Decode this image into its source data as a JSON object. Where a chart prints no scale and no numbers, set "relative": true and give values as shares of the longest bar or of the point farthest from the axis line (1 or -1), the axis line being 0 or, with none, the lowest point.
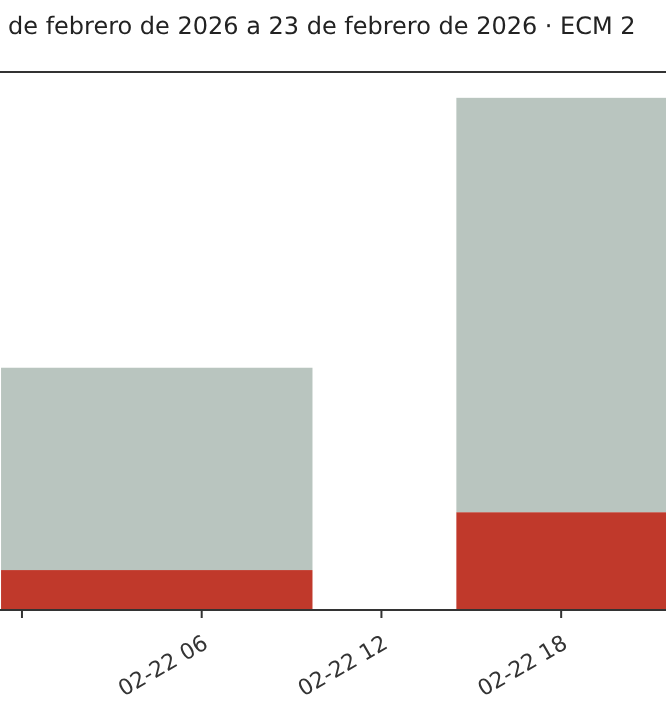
{
  "chart_data": {
    "type": "bar",
    "title": "de febrero de 2026 a 23 de febrero de 2026 · ECM 2",
    "relative": true,
    "stacked": true,
    "x": [
      "2026-02-22T04:30",
      "2026-02-22T19:42"
    ],
    "xlim": [
      "2026-02-21T23:16",
      "2026-02-22T21:30"
    ],
    "xticks": [
      {
        "value": "2026-02-22T00:00",
        "label": null
      },
      {
        "value": "2026-02-22T06:00",
        "label": "02-22 06"
      },
      {
        "value": "2026-02-22T12:00",
        "label": "02-22 12"
      },
      {
        "value": "2026-02-22T18:00",
        "label": "02-22 18"
      }
    ],
    "series": [
      {
        "color": "#c0392b",
        "values": [
          0.078,
          0.191
        ]
      },
      {
        "color": "#b9c5bf",
        "values": [
          0.395,
          0.809
        ]
      }
    ],
    "grid": false
  }
}
